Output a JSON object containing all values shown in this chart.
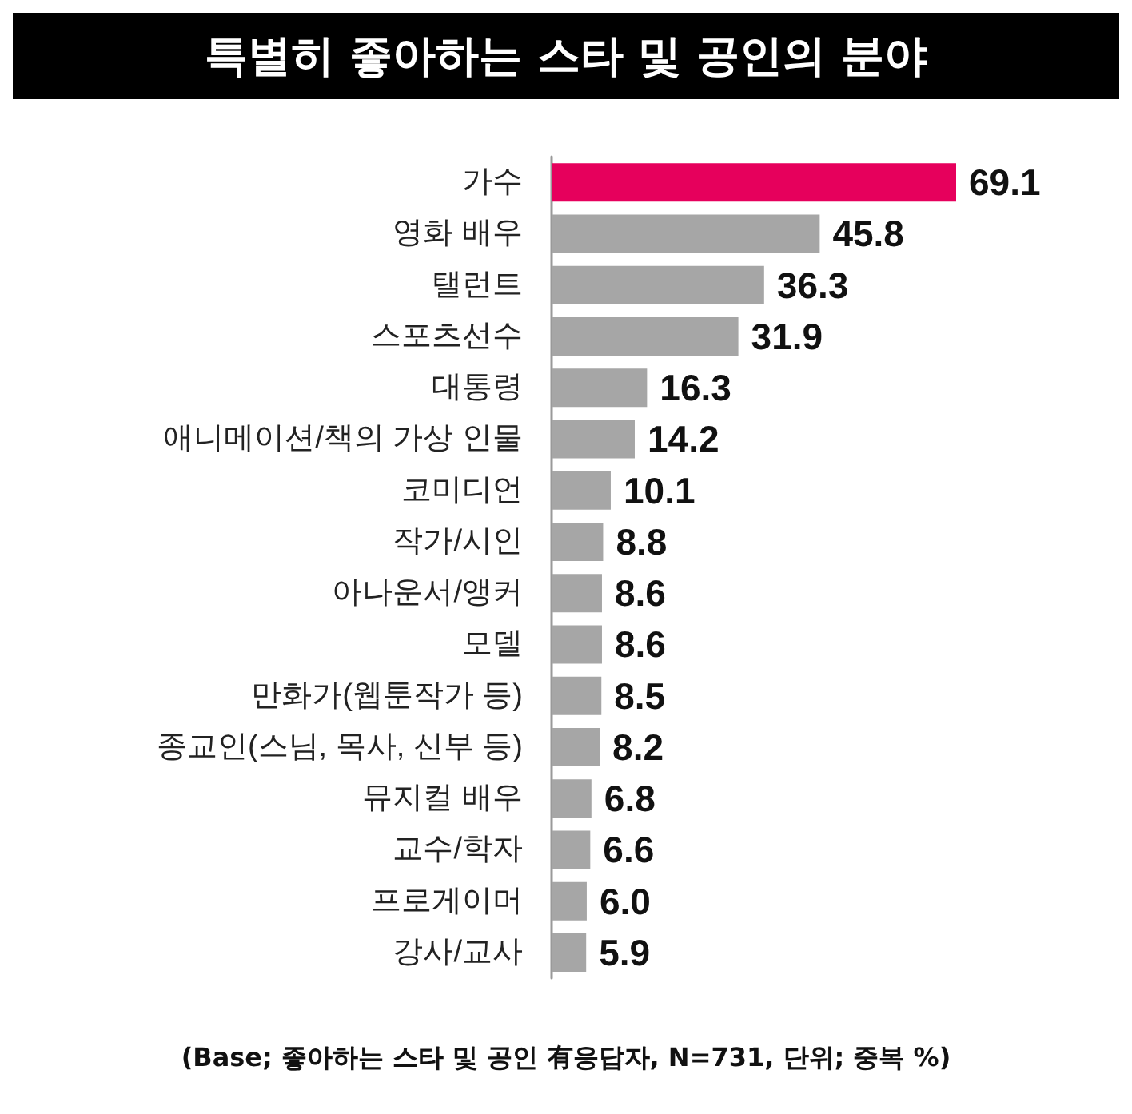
{
  "chart_data": {
    "type": "bar",
    "orientation": "horizontal",
    "title": "특별히 좋아하는 스타 및 공인의 분야",
    "categories": [
      "가수",
      "영화 배우",
      "탤런트",
      "스포츠선수",
      "대통령",
      "애니메이션/책의 가상 인물",
      "코미디언",
      "작가/시인",
      "아나운서/앵커",
      "모델",
      "만화가(웹툰작가 등)",
      "종교인(스님, 목사, 신부 등)",
      "뮤지컬 배우",
      "교수/학자",
      "프로게이머",
      "강사/교사"
    ],
    "values": [
      69.1,
      45.8,
      36.3,
      31.9,
      16.3,
      14.2,
      10.1,
      8.8,
      8.6,
      8.6,
      8.5,
      8.2,
      6.8,
      6.6,
      6.0,
      5.9
    ],
    "colors": [
      "#e6005c",
      "#a6a6a6",
      "#a6a6a6",
      "#a6a6a6",
      "#a6a6a6",
      "#a6a6a6",
      "#a6a6a6",
      "#a6a6a6",
      "#a6a6a6",
      "#a6a6a6",
      "#a6a6a6",
      "#a6a6a6",
      "#a6a6a6",
      "#a6a6a6",
      "#a6a6a6",
      "#a6a6a6"
    ],
    "value_labels": [
      "69.1",
      "45.8",
      "36.3",
      "31.9",
      "16.3",
      "14.2",
      "10.1",
      "8.8",
      "8.6",
      "8.6",
      "8.5",
      "8.2",
      "6.8",
      "6.6",
      "6.0",
      "5.9"
    ],
    "annotations": [
      "(Base; 좋아하는 스타 및 공인 有응답자, N=731, 단위; 중복 %)"
    ]
  }
}
